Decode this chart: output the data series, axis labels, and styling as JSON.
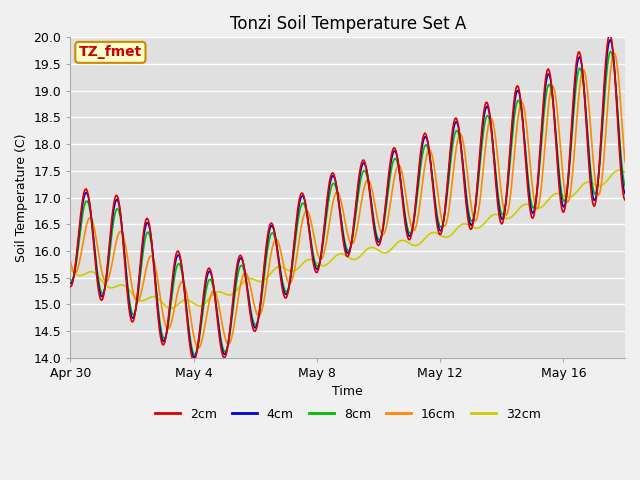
{
  "title": "Tonzi Soil Temperature Set A",
  "xlabel": "Time",
  "ylabel": "Soil Temperature (C)",
  "ylim": [
    14.0,
    20.0
  ],
  "yticks": [
    14.0,
    14.5,
    15.0,
    15.5,
    16.0,
    16.5,
    17.0,
    17.5,
    18.0,
    18.5,
    19.0,
    19.5,
    20.0
  ],
  "x_tick_pos": [
    0,
    4,
    8,
    12,
    16
  ],
  "x_tick_labels": [
    "Apr 30",
    "May 4",
    "May 8",
    "May 12",
    "May 16"
  ],
  "xlim": [
    0,
    18
  ],
  "legend_labels": [
    "2cm",
    "4cm",
    "8cm",
    "16cm",
    "32cm"
  ],
  "line_colors": [
    "#dd0000",
    "#0000cc",
    "#00bb00",
    "#ff8800",
    "#cccc00"
  ],
  "annotation_text": "TZ_fmet",
  "annotation_bg": "#ffffcc",
  "annotation_border": "#cc8800",
  "fig_bg": "#f0f0f0",
  "plot_bg": "#e0e0e0",
  "grid_color": "#ffffff",
  "title_fontsize": 12,
  "axis_label_fontsize": 9,
  "tick_fontsize": 9,
  "legend_fontsize": 9,
  "line_width": 1.2
}
